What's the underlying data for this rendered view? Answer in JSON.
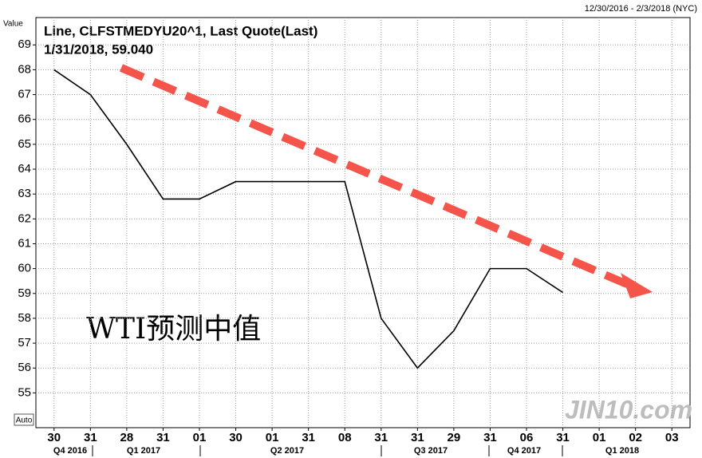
{
  "chart_data": {
    "type": "line",
    "title": "Line, CLFSTMEDYU20^1, Last Quote(Last)",
    "subtitle": "1/31/2018, 59.040",
    "date_range": "12/30/2016 - 2/3/2018 (NYC)",
    "y_label": "Value",
    "scale_button": "Auto",
    "annotation": "WTI预测中值",
    "watermark": "JIN10.com",
    "categories": [
      "30",
      "31",
      "28",
      "31",
      "01",
      "30",
      "01",
      "31",
      "08",
      "31",
      "31",
      "29",
      "31",
      "06",
      "31",
      "01",
      "02",
      "03"
    ],
    "quarters": [
      "Q4 2016",
      "Q1 2017",
      "Q2 2017",
      "Q3 2017",
      "Q4 2017",
      "Q1 2018"
    ],
    "series": [
      {
        "name": "CLFSTMEDYU20^1",
        "color": "#000000",
        "values": [
          68,
          67,
          65,
          62.8,
          62.8,
          63.5,
          63.5,
          63.5,
          63.5,
          58,
          56,
          57.5,
          60,
          60,
          59.04,
          null,
          null,
          null
        ]
      }
    ],
    "ylim": [
      53.6,
      70.1
    ],
    "yticks": [
      55,
      56,
      57,
      58,
      59,
      60,
      61,
      62,
      63,
      64,
      65,
      66,
      67,
      68,
      69
    ],
    "grid": true
  }
}
